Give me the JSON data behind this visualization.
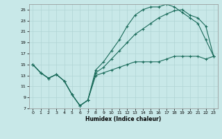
{
  "xlabel": "Humidex (Indice chaleur)",
  "bg_color": "#c8e8e8",
  "grid_color": "#b0d4d4",
  "line_color": "#1a6b5a",
  "xlim": [
    -0.5,
    23.5
  ],
  "ylim": [
    7,
    26
  ],
  "xticks": [
    0,
    1,
    2,
    3,
    4,
    5,
    6,
    7,
    8,
    9,
    10,
    11,
    12,
    13,
    14,
    15,
    16,
    17,
    18,
    19,
    20,
    21,
    22,
    23
  ],
  "yticks": [
    7,
    9,
    11,
    13,
    15,
    17,
    19,
    21,
    23,
    25
  ],
  "line1_x": [
    0,
    1,
    2,
    3,
    4,
    5,
    6,
    7,
    8,
    9,
    10,
    11,
    12,
    13,
    14,
    15,
    16,
    17,
    18,
    19,
    20,
    21,
    22,
    23
  ],
  "line1_y": [
    15,
    13.5,
    12.5,
    13.2,
    12,
    9.5,
    7.5,
    8.5,
    14,
    15.5,
    17.5,
    19.5,
    22.0,
    24.0,
    25.0,
    25.5,
    25.5,
    26.0,
    25.5,
    24.5,
    23.5,
    22.5,
    19.5,
    16.5
  ],
  "line2_x": [
    0,
    1,
    2,
    3,
    4,
    5,
    6,
    7,
    8,
    9,
    10,
    11,
    12,
    13,
    14,
    15,
    16,
    17,
    18,
    19,
    20,
    21,
    22,
    23
  ],
  "line2_y": [
    15,
    13.5,
    12.5,
    13.2,
    12,
    9.5,
    7.5,
    8.5,
    13.5,
    14.5,
    16.0,
    17.5,
    19.0,
    20.5,
    21.5,
    22.5,
    23.5,
    24.2,
    24.8,
    25.0,
    24.0,
    23.5,
    22.0,
    16.5
  ],
  "line3_x": [
    0,
    1,
    2,
    3,
    4,
    5,
    6,
    7,
    8,
    9,
    10,
    11,
    12,
    13,
    14,
    15,
    16,
    17,
    18,
    19,
    20,
    21,
    22,
    23
  ],
  "line3_y": [
    15,
    13.5,
    12.5,
    13.2,
    12,
    9.5,
    7.5,
    8.5,
    13.0,
    13.5,
    14.0,
    14.5,
    15.0,
    15.5,
    15.5,
    15.5,
    15.5,
    16.0,
    16.5,
    16.5,
    16.5,
    16.5,
    16.0,
    16.5
  ]
}
